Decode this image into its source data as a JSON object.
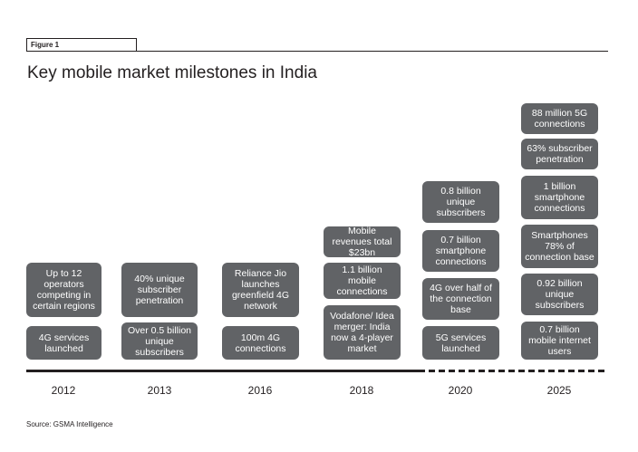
{
  "figure_label": "Figure 1",
  "title": "Key mobile market milestones in India",
  "source": "Source: GSMA Intelligence",
  "colors": {
    "box": "#616366",
    "text": "#231f20"
  },
  "years": [
    "2012",
    "2013",
    "2016",
    "2018",
    "2020",
    "2025"
  ],
  "columns": [
    {
      "year": "2012",
      "milestones": [
        "Up to 12 operators competing in certain regions",
        "4G services launched"
      ]
    },
    {
      "year": "2013",
      "milestones": [
        "40% unique subscriber penetration",
        "Over 0.5 billion unique subscribers"
      ]
    },
    {
      "year": "2016",
      "milestones": [
        "Reliance Jio launches greenfield 4G network",
        "100m 4G connections"
      ]
    },
    {
      "year": "2018",
      "milestones": [
        "Mobile revenues total $23bn",
        "1.1 billion mobile connections",
        "Vodafone/ Idea merger: India now a 4-player market"
      ]
    },
    {
      "year": "2020",
      "milestones": [
        "0.8 billion unique subscribers",
        "0.7 billion smartphone connections",
        "4G over half of the connection base",
        "5G services launched"
      ]
    },
    {
      "year": "2025",
      "milestones": [
        "88 million 5G connections",
        "63% subscriber penetration",
        "1 billion smartphone connections",
        "Smartphones 78% of connection base",
        "0.92 billion unique subscribers",
        "0.7 billion mobile internet users"
      ]
    }
  ],
  "timeline": {
    "solid_until": "2020",
    "projected_from": "2020"
  }
}
